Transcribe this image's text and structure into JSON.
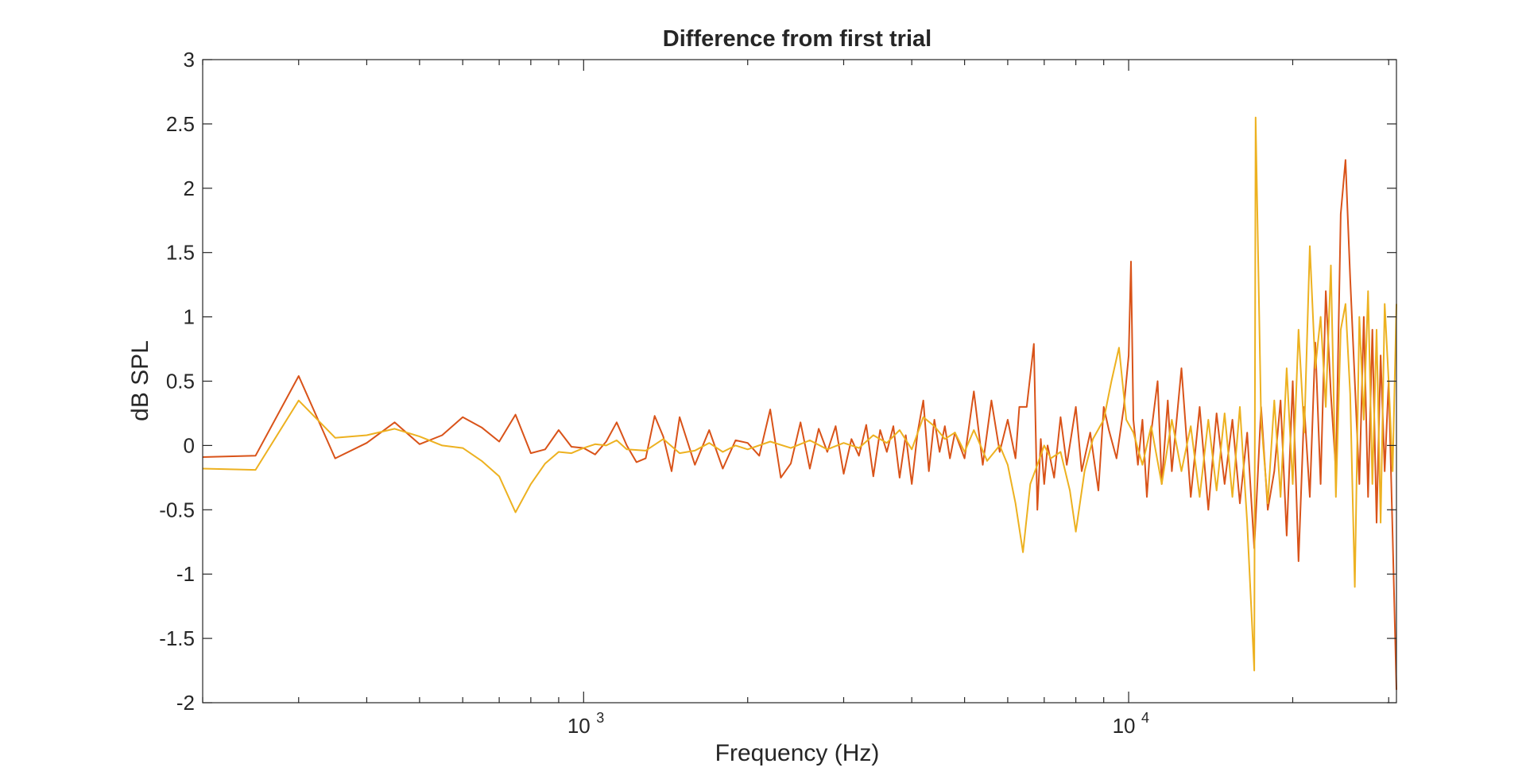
{
  "chart_data": {
    "type": "line",
    "title": "Difference from first trial",
    "xlabel": "Frequency (Hz)",
    "ylabel": "dB SPL",
    "xscale": "log",
    "xlim": [
      200,
      31000
    ],
    "ylim": [
      -2,
      3
    ],
    "yticks": [
      -2,
      -1.5,
      -1,
      -0.5,
      0,
      0.5,
      1,
      1.5,
      2,
      2.5,
      3
    ],
    "yticklabels": [
      "-2",
      "-1.5",
      "-1",
      "-0.5",
      "0",
      "0.5",
      "1",
      "1.5",
      "2",
      "2.5",
      "3"
    ],
    "xticks": [
      {
        "value": 1000,
        "base": "10",
        "exponent": "3"
      },
      {
        "value": 10000,
        "base": "10",
        "exponent": "4"
      }
    ],
    "grid": false,
    "box": true,
    "series": [
      {
        "color": "#d95319",
        "points": [
          [
            200,
            -0.09
          ],
          [
            250,
            -0.08
          ],
          [
            300,
            0.54
          ],
          [
            350,
            -0.1
          ],
          [
            400,
            0.02
          ],
          [
            450,
            0.18
          ],
          [
            500,
            0.01
          ],
          [
            550,
            0.08
          ],
          [
            600,
            0.22
          ],
          [
            650,
            0.14
          ],
          [
            700,
            0.03
          ],
          [
            750,
            0.24
          ],
          [
            800,
            -0.06
          ],
          [
            850,
            -0.03
          ],
          [
            900,
            0.12
          ],
          [
            950,
            -0.01
          ],
          [
            1000,
            -0.02
          ],
          [
            1050,
            -0.07
          ],
          [
            1100,
            0.03
          ],
          [
            1150,
            0.18
          ],
          [
            1200,
            0.0
          ],
          [
            1250,
            -0.13
          ],
          [
            1300,
            -0.1
          ],
          [
            1350,
            0.23
          ],
          [
            1400,
            0.07
          ],
          [
            1450,
            -0.2
          ],
          [
            1500,
            0.22
          ],
          [
            1600,
            -0.15
          ],
          [
            1700,
            0.12
          ],
          [
            1800,
            -0.18
          ],
          [
            1900,
            0.04
          ],
          [
            2000,
            0.02
          ],
          [
            2100,
            -0.08
          ],
          [
            2200,
            0.28
          ],
          [
            2300,
            -0.25
          ],
          [
            2400,
            -0.14
          ],
          [
            2500,
            0.18
          ],
          [
            2600,
            -0.18
          ],
          [
            2700,
            0.13
          ],
          [
            2800,
            -0.05
          ],
          [
            2900,
            0.15
          ],
          [
            3000,
            -0.22
          ],
          [
            3100,
            0.05
          ],
          [
            3200,
            -0.08
          ],
          [
            3300,
            0.16
          ],
          [
            3400,
            -0.24
          ],
          [
            3500,
            0.12
          ],
          [
            3600,
            -0.05
          ],
          [
            3700,
            0.15
          ],
          [
            3800,
            -0.25
          ],
          [
            3900,
            0.08
          ],
          [
            4000,
            -0.3
          ],
          [
            4100,
            0.1
          ],
          [
            4200,
            0.35
          ],
          [
            4300,
            -0.2
          ],
          [
            4400,
            0.2
          ],
          [
            4500,
            -0.05
          ],
          [
            4600,
            0.15
          ],
          [
            4700,
            -0.1
          ],
          [
            4800,
            0.1
          ],
          [
            5000,
            -0.1
          ],
          [
            5200,
            0.42
          ],
          [
            5400,
            -0.15
          ],
          [
            5600,
            0.35
          ],
          [
            5800,
            -0.05
          ],
          [
            6000,
            0.2
          ],
          [
            6200,
            -0.1
          ],
          [
            6300,
            0.3
          ],
          [
            6400,
            0.3
          ],
          [
            6500,
            0.3
          ],
          [
            6700,
            0.79
          ],
          [
            6800,
            -0.5
          ],
          [
            6900,
            0.05
          ],
          [
            7000,
            -0.3
          ],
          [
            7100,
            0.0
          ],
          [
            7300,
            -0.25
          ],
          [
            7500,
            0.22
          ],
          [
            7700,
            -0.15
          ],
          [
            8000,
            0.3
          ],
          [
            8200,
            -0.2
          ],
          [
            8500,
            0.1
          ],
          [
            8800,
            -0.35
          ],
          [
            9000,
            0.3
          ],
          [
            9200,
            0.12
          ],
          [
            9500,
            -0.1
          ],
          [
            9800,
            0.3
          ],
          [
            10000,
            0.7
          ],
          [
            10100,
            1.43
          ],
          [
            10200,
            0.2
          ],
          [
            10400,
            -0.15
          ],
          [
            10600,
            0.2
          ],
          [
            10800,
            -0.4
          ],
          [
            11000,
            0.1
          ],
          [
            11300,
            0.5
          ],
          [
            11500,
            -0.3
          ],
          [
            11800,
            0.35
          ],
          [
            12000,
            -0.2
          ],
          [
            12500,
            0.6
          ],
          [
            13000,
            -0.4
          ],
          [
            13500,
            0.3
          ],
          [
            14000,
            -0.5
          ],
          [
            14500,
            0.25
          ],
          [
            15000,
            -0.3
          ],
          [
            15500,
            0.2
          ],
          [
            16000,
            -0.45
          ],
          [
            16500,
            0.1
          ],
          [
            17000,
            -0.8
          ],
          [
            17500,
            0.3
          ],
          [
            18000,
            -0.5
          ],
          [
            18500,
            -0.2
          ],
          [
            19000,
            0.35
          ],
          [
            19500,
            -0.7
          ],
          [
            20000,
            0.5
          ],
          [
            20500,
            -0.9
          ],
          [
            21000,
            0.3
          ],
          [
            21500,
            -0.4
          ],
          [
            22000,
            0.8
          ],
          [
            22500,
            -0.3
          ],
          [
            23000,
            1.2
          ],
          [
            23500,
            0.4
          ],
          [
            24000,
            -0.2
          ],
          [
            24500,
            1.8
          ],
          [
            25000,
            2.22
          ],
          [
            25500,
            1.3
          ],
          [
            26000,
            0.5
          ],
          [
            26500,
            -0.3
          ],
          [
            27000,
            1.0
          ],
          [
            27500,
            -0.4
          ],
          [
            28000,
            0.9
          ],
          [
            28500,
            -0.6
          ],
          [
            29000,
            0.7
          ],
          [
            29500,
            -0.2
          ],
          [
            30000,
            0.5
          ],
          [
            30500,
            -0.7
          ],
          [
            31000,
            -1.9
          ]
        ]
      },
      {
        "color": "#edb120",
        "points": [
          [
            200,
            -0.18
          ],
          [
            250,
            -0.19
          ],
          [
            300,
            0.35
          ],
          [
            350,
            0.06
          ],
          [
            400,
            0.08
          ],
          [
            450,
            0.13
          ],
          [
            500,
            0.07
          ],
          [
            550,
            0.0
          ],
          [
            600,
            -0.02
          ],
          [
            650,
            -0.12
          ],
          [
            700,
            -0.24
          ],
          [
            750,
            -0.52
          ],
          [
            800,
            -0.3
          ],
          [
            850,
            -0.14
          ],
          [
            900,
            -0.05
          ],
          [
            950,
            -0.06
          ],
          [
            1000,
            -0.02
          ],
          [
            1050,
            0.01
          ],
          [
            1100,
            0.0
          ],
          [
            1150,
            0.04
          ],
          [
            1200,
            -0.03
          ],
          [
            1300,
            -0.04
          ],
          [
            1400,
            0.05
          ],
          [
            1500,
            -0.06
          ],
          [
            1600,
            -0.04
          ],
          [
            1700,
            0.02
          ],
          [
            1800,
            -0.05
          ],
          [
            1900,
            0.0
          ],
          [
            2000,
            -0.03
          ],
          [
            2200,
            0.03
          ],
          [
            2400,
            -0.02
          ],
          [
            2600,
            0.04
          ],
          [
            2800,
            -0.03
          ],
          [
            3000,
            0.02
          ],
          [
            3200,
            -0.02
          ],
          [
            3400,
            0.08
          ],
          [
            3600,
            0.02
          ],
          [
            3800,
            0.12
          ],
          [
            4000,
            -0.03
          ],
          [
            4200,
            0.22
          ],
          [
            4400,
            0.15
          ],
          [
            4600,
            0.05
          ],
          [
            4800,
            0.1
          ],
          [
            5000,
            -0.05
          ],
          [
            5200,
            0.12
          ],
          [
            5500,
            -0.12
          ],
          [
            5800,
            0.0
          ],
          [
            6000,
            -0.15
          ],
          [
            6200,
            -0.45
          ],
          [
            6400,
            -0.83
          ],
          [
            6600,
            -0.3
          ],
          [
            6800,
            -0.15
          ],
          [
            7000,
            0.0
          ],
          [
            7200,
            -0.1
          ],
          [
            7500,
            -0.05
          ],
          [
            7800,
            -0.35
          ],
          [
            8000,
            -0.67
          ],
          [
            8300,
            -0.2
          ],
          [
            8600,
            0.05
          ],
          [
            9000,
            0.2
          ],
          [
            9300,
            0.5
          ],
          [
            9600,
            0.76
          ],
          [
            9900,
            0.2
          ],
          [
            10200,
            0.1
          ],
          [
            10600,
            -0.15
          ],
          [
            11000,
            0.15
          ],
          [
            11500,
            -0.3
          ],
          [
            12000,
            0.2
          ],
          [
            12500,
            -0.2
          ],
          [
            13000,
            0.15
          ],
          [
            13500,
            -0.4
          ],
          [
            14000,
            0.2
          ],
          [
            14500,
            -0.35
          ],
          [
            15000,
            0.25
          ],
          [
            15500,
            -0.4
          ],
          [
            16000,
            0.3
          ],
          [
            16500,
            -0.6
          ],
          [
            17000,
            -1.75
          ],
          [
            17100,
            2.55
          ],
          [
            17500,
            0.2
          ],
          [
            18000,
            -0.45
          ],
          [
            18500,
            0.35
          ],
          [
            19000,
            -0.4
          ],
          [
            19500,
            0.6
          ],
          [
            20000,
            -0.3
          ],
          [
            20500,
            0.9
          ],
          [
            21000,
            0.1
          ],
          [
            21500,
            1.55
          ],
          [
            22000,
            0.6
          ],
          [
            22500,
            1.0
          ],
          [
            23000,
            0.3
          ],
          [
            23500,
            1.4
          ],
          [
            24000,
            -0.4
          ],
          [
            24500,
            0.9
          ],
          [
            25000,
            1.1
          ],
          [
            25500,
            0.4
          ],
          [
            26000,
            -1.1
          ],
          [
            26500,
            1.0
          ],
          [
            27000,
            0.2
          ],
          [
            27500,
            1.2
          ],
          [
            28000,
            -0.3
          ],
          [
            28500,
            0.9
          ],
          [
            29000,
            -0.6
          ],
          [
            29500,
            1.1
          ],
          [
            30000,
            0.5
          ],
          [
            30500,
            -0.2
          ],
          [
            31000,
            1.1
          ]
        ]
      }
    ]
  }
}
